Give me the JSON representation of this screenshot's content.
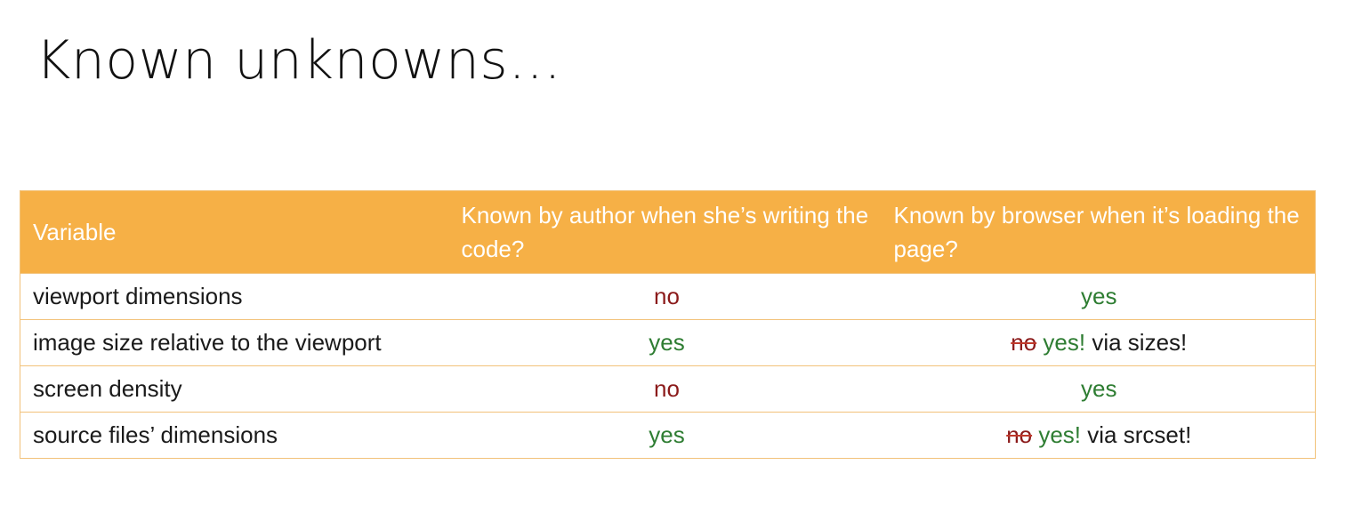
{
  "slide": {
    "title": "Known unknowns…"
  },
  "table": {
    "headers": [
      "Variable",
      "Known by author when she’s writing the code?",
      "Known by browser when it’s loading the page?"
    ],
    "rows": [
      {
        "variable": "viewport dimensions",
        "author": "no",
        "browser": "yes"
      },
      {
        "variable": "image size relative to the viewport",
        "author": "yes",
        "browser_struck": "no",
        "browser_yes": "yes!",
        "browser_note": "via sizes!"
      },
      {
        "variable": "screen density",
        "author": "no",
        "browser": "yes"
      },
      {
        "variable": "source files’ dimensions",
        "author": "yes",
        "browser_struck": "no",
        "browser_yes": "yes!",
        "browser_note": "via srcset!"
      }
    ]
  },
  "colors": {
    "header_bg": "#f6b046",
    "no": "#8b1a1a",
    "yes": "#2e7d32"
  }
}
